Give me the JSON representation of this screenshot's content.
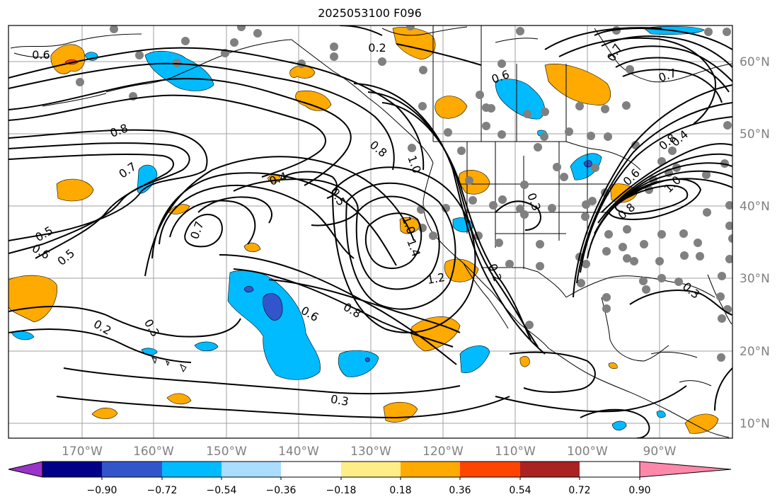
{
  "title": "2025053100 F096",
  "longitude_labels": [
    "170°W",
    "160°W",
    "150°W",
    "140°W",
    "130°W",
    "120°W",
    "110°W",
    "100°W",
    "90°W"
  ],
  "latitude_labels": [
    "60°N",
    "50°N",
    "40°N",
    "30°N",
    "20°N",
    "10°N"
  ],
  "colorbar": {
    "tick_labels": [
      "−0.90",
      "−0.72",
      "−0.54",
      "−0.36",
      "−0.18",
      "0.18",
      "0.36",
      "0.54",
      "0.72",
      "0.90"
    ],
    "colors": [
      "#9933cc",
      "#000088",
      "#3355cc",
      "#00bbff",
      "#aaddff",
      "#ffffff",
      "#ffee88",
      "#ffaa00",
      "#ff4400",
      "#aa2222",
      "#ff88aa"
    ]
  },
  "contour_labels": [
    {
      "text": "0.6"
    },
    {
      "text": "0.2"
    },
    {
      "text": "0.8"
    },
    {
      "text": "0.7"
    },
    {
      "text": "0.7"
    },
    {
      "text": "0.6"
    },
    {
      "text": "0.4"
    },
    {
      "text": "0.5"
    },
    {
      "text": "0.8"
    },
    {
      "text": "1.0"
    },
    {
      "text": "0.5"
    },
    {
      "text": "0.6"
    },
    {
      "text": "0.5"
    },
    {
      "text": "0.7"
    },
    {
      "text": "1.0"
    },
    {
      "text": "1.4"
    },
    {
      "text": "1.2"
    },
    {
      "text": "0.6"
    },
    {
      "text": "0.8"
    },
    {
      "text": "0.2"
    },
    {
      "text": "0.3"
    },
    {
      "text": "0.2"
    },
    {
      "text": "0.3"
    },
    {
      "text": "0.7"
    },
    {
      "text": "0.8"
    },
    {
      "text": "0.8"
    },
    {
      "text": "0.3"
    },
    {
      "text": "0.3"
    },
    {
      "text": "0.6"
    },
    {
      "text": "1.0"
    },
    {
      "text": "0.4"
    }
  ]
}
